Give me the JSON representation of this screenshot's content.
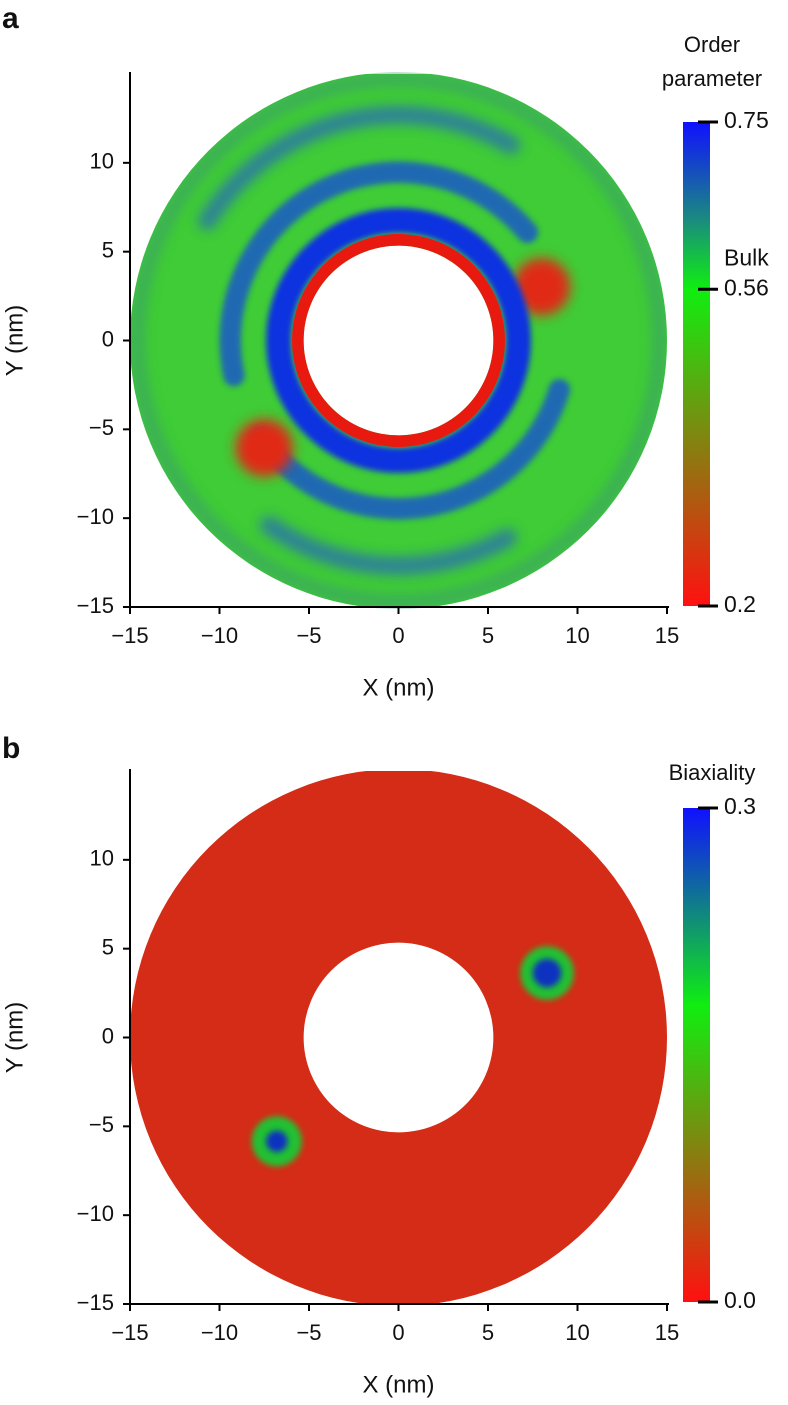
{
  "chart_data": [
    {
      "type": "heatmap",
      "panel": "a",
      "xlabel": "X (nm)",
      "ylabel": "Y (nm)",
      "xlim": [
        -15,
        15
      ],
      "ylim": [
        -15,
        15
      ],
      "xticks": [
        {
          "value": -15,
          "label": "−15"
        },
        {
          "value": -10,
          "label": "−10"
        },
        {
          "value": -5,
          "label": "−5"
        },
        0,
        5,
        10,
        15
      ],
      "yticks": [
        {
          "value": -15,
          "label": "−15"
        },
        {
          "value": -10,
          "label": "−10"
        },
        {
          "value": -5,
          "label": "−5"
        },
        0,
        5,
        10
      ],
      "colorbar_title": "Order parameter",
      "clim": [
        0.2,
        0.75
      ],
      "cticks": [
        0.75,
        0.56,
        0.2
      ],
      "cbar_annotations": [
        {
          "value": 0.56,
          "label": "Bulk"
        }
      ],
      "colorscale": [
        {
          "value": 0.2,
          "color": "#ff1010"
        },
        {
          "value": 0.56,
          "color": "#10ee10"
        },
        {
          "value": 0.64,
          "color": "#1a8a80"
        },
        {
          "value": 0.75,
          "color": "#1010ff"
        }
      ]
    },
    {
      "type": "heatmap",
      "panel": "b",
      "xlabel": "X (nm)",
      "ylabel": "Y (nm)",
      "xlim": [
        -15,
        15
      ],
      "ylim": [
        -15,
        15
      ],
      "xticks": [
        {
          "value": -15,
          "label": "−15"
        },
        {
          "value": -10,
          "label": "−10"
        },
        {
          "value": -5,
          "label": "−5"
        },
        0,
        5,
        10,
        15
      ],
      "yticks": [
        {
          "value": -15,
          "label": "−15"
        },
        {
          "value": -10,
          "label": "−10"
        },
        {
          "value": -5,
          "label": "−5"
        },
        0,
        5,
        10
      ],
      "colorbar_title": "Biaxiality",
      "clim": [
        0,
        0.3
      ],
      "cticks": [
        {
          "value": 0,
          "label": "0.0"
        },
        0.3
      ],
      "colorscale": [
        {
          "value": 0,
          "color": "#ff1010"
        },
        {
          "value": 0.18,
          "color": "#10ee10"
        },
        {
          "value": 0.3,
          "color": "#1010ff"
        }
      ]
    }
  ]
}
